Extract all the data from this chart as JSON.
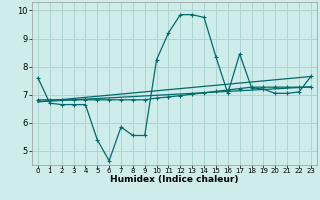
{
  "xlabel": "Humidex (Indice chaleur)",
  "background_color": "#ceecea",
  "grid_color": "#aed4d0",
  "line_color": "#006b6b",
  "xlim": [
    -0.5,
    23.5
  ],
  "ylim": [
    4.5,
    10.3
  ],
  "xtick_labels": [
    "0",
    "1",
    "2",
    "3",
    "4",
    "5",
    "6",
    "7",
    "8",
    "9",
    "10",
    "11",
    "12",
    "13",
    "14",
    "15",
    "16",
    "17",
    "18",
    "19",
    "20",
    "21",
    "22",
    "23"
  ],
  "ytick_values": [
    5,
    6,
    7,
    8,
    9,
    10
  ],
  "ytick_labels": [
    "5",
    "6",
    "7",
    "8",
    "9",
    "10"
  ],
  "line1_x": [
    0,
    1,
    2,
    3,
    4,
    5,
    6,
    7,
    8,
    9,
    10,
    11,
    12,
    13,
    14,
    15,
    16,
    17,
    18,
    19,
    20,
    21,
    22,
    23
  ],
  "line1_y": [
    7.6,
    6.7,
    6.65,
    6.65,
    6.65,
    5.4,
    4.65,
    5.85,
    5.55,
    5.55,
    8.25,
    9.2,
    9.85,
    9.85,
    9.75,
    8.35,
    7.05,
    8.45,
    7.25,
    7.2,
    7.05,
    7.05,
    7.1,
    7.65
  ],
  "line2_x": [
    0,
    1,
    2,
    3,
    4,
    5,
    6,
    7,
    8,
    9,
    10,
    11,
    12,
    13,
    14,
    15,
    16,
    17,
    18,
    19,
    20,
    21,
    22,
    23
  ],
  "line2_y": [
    6.82,
    6.82,
    6.82,
    6.82,
    6.82,
    6.82,
    6.82,
    6.82,
    6.82,
    6.82,
    6.88,
    6.92,
    6.97,
    7.02,
    7.07,
    7.12,
    7.17,
    7.22,
    7.27,
    7.27,
    7.27,
    7.27,
    7.27,
    7.27
  ],
  "line3_x": [
    0,
    23
  ],
  "line3_y": [
    6.75,
    7.28
  ],
  "line4_x": [
    0,
    23
  ],
  "line4_y": [
    6.75,
    7.65
  ]
}
